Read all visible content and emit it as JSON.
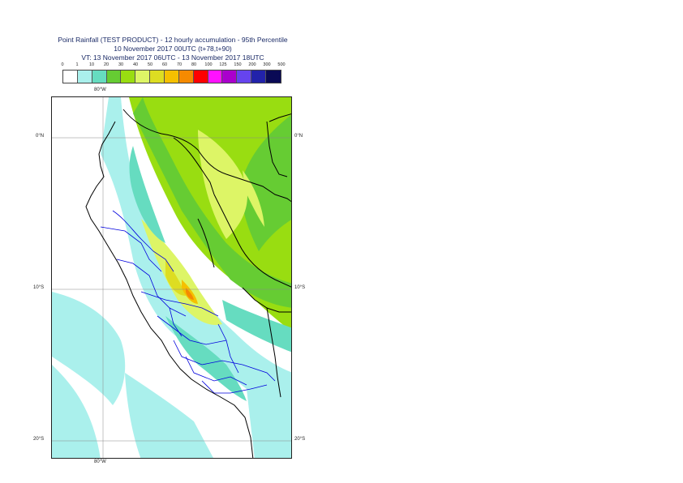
{
  "title": {
    "line1": "Point Rainfall (TEST PRODUCT) - 12 hourly accumulation - 95th Percentile",
    "line2": "10 November 2017 00UTC (t+78,t+90)",
    "line3": "VT: 13 November 2017 06UTC - 13 November 2017 18UTC"
  },
  "legend": {
    "ticks": [
      "0",
      "1",
      "10",
      "20",
      "30",
      "40",
      "50",
      "60",
      "70",
      "80",
      "100",
      "125",
      "150",
      "200",
      "300",
      "500"
    ],
    "colors": [
      "#ffffff",
      "#aaf0ec",
      "#66dcc0",
      "#66cc33",
      "#99dd11",
      "#ddf566",
      "#dddd22",
      "#f5c000",
      "#f58a00",
      "#ff0000",
      "#ff11ff",
      "#aa00cc",
      "#6644ee",
      "#2222aa",
      "#0a0a55"
    ]
  },
  "map": {
    "lon_labels": {
      "top": "80°W",
      "bottom": "80°W"
    },
    "lat_labels": {
      "zero_left": "0°N",
      "zero_right": "0°N",
      "ten_left": "10°S",
      "ten_right": "10°S",
      "twenty_left": "20°S",
      "twenty_right": "20°S"
    },
    "colors": {
      "ocean_rain": "#aaf0ec",
      "coast": "#000000",
      "admin": "#0000dd"
    }
  }
}
